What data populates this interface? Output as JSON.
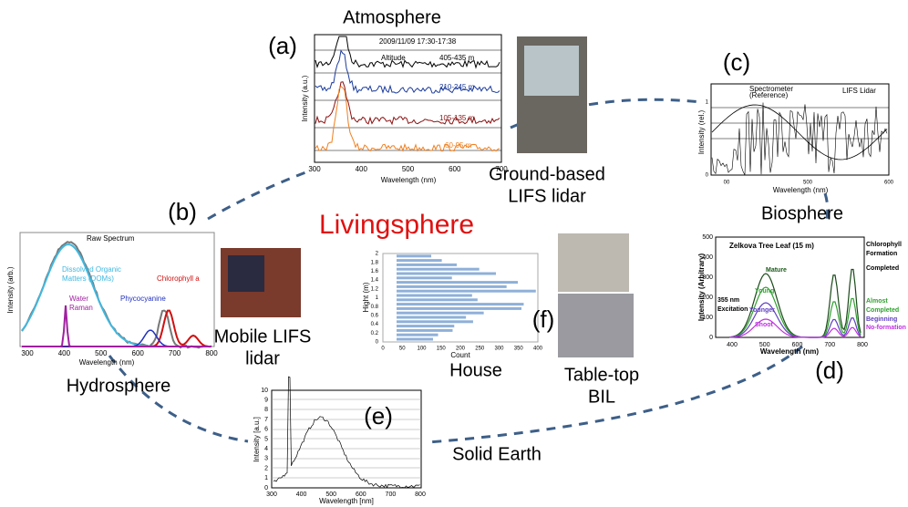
{
  "center_title": "Livingsphere",
  "atmosphere": {
    "label": "(a)",
    "sphere": "Atmosphere",
    "date": "2009/11/09 17:30-17:38",
    "altitude": "Altitude",
    "ranges": [
      "405-435 m",
      "210-245 m",
      "105-135 m",
      "60-95 m"
    ],
    "y_label": "Intensity (a.u.)",
    "x_label": "Wavelength  (nm)",
    "x_ticks": [
      "300",
      "400",
      "500",
      "600",
      "700"
    ],
    "photo_caption": [
      "Ground-based",
      "LIFS lidar"
    ]
  },
  "biosphere": {
    "label": "(c)",
    "sphere": "Biosphere",
    "legend": [
      "Spectrometer",
      "(Reference)",
      "LIFS Lidar"
    ],
    "y_label": "Intensity (rel.)",
    "y_ticks": [
      "1",
      "0"
    ],
    "x_label": "Wavelength (nm)",
    "x_ticks": [
      "00",
      "500",
      "600"
    ]
  },
  "hydrosphere": {
    "label": "(b)",
    "sphere": "Hydrosphere",
    "annotations": [
      "Raw Spectrum",
      "Dissolved Organic",
      "Matters (DOMs)",
      "Chlorophyll a",
      "Phycocyanine",
      "Water",
      "Raman"
    ],
    "y_label": "Intensity (arb.)",
    "x_label": "Wavelength  (nm)",
    "x_ticks": [
      "300",
      "400",
      "500",
      "600",
      "700",
      "800"
    ],
    "photo_caption": [
      "Mobile LIFS",
      "lidar"
    ]
  },
  "leaf": {
    "label": "(d)",
    "title": "Zelkova Tree Leaf (15 m)",
    "annotations": [
      "Chlorophyll",
      "Formation",
      "Completed",
      "Mature",
      "Young",
      "Almost",
      "Completed",
      "Younger",
      "Beginning",
      "Shoot",
      "No-formation",
      "355 nm",
      "Excitation"
    ],
    "y_label": "Intensity (Arbitrary)",
    "y_ticks": [
      "500",
      "400",
      "300",
      "200",
      "100",
      "0"
    ],
    "x_label": "Wavelength (nm)",
    "x_ticks": [
      "400",
      "500",
      "600",
      "700",
      "800"
    ]
  },
  "solid_earth": {
    "label": "(e)",
    "sphere": "Solid Earth",
    "y_label": "Intensity [a.u.]",
    "y_ticks": [
      "10",
      "9",
      "8",
      "7",
      "6",
      "5",
      "4",
      "3",
      "2",
      "1",
      "0"
    ],
    "x_label": "Wavelength [nm]",
    "x_ticks": [
      "300",
      "400",
      "500",
      "600",
      "700",
      "800"
    ]
  },
  "house": {
    "label": "(f)",
    "caption": "House",
    "y_label": "Hight (m)",
    "y_ticks": [
      "0",
      "0.2",
      "0.4",
      "0.6",
      "0.8",
      "1",
      "1.2",
      "1.4",
      "1.6",
      "1.8",
      "2"
    ],
    "x_label": "Count",
    "x_ticks": [
      "0",
      "50",
      "100",
      "150",
      "200",
      "250",
      "300",
      "350",
      "400"
    ],
    "photo_caption": [
      "Table-top",
      "BIL"
    ]
  }
}
